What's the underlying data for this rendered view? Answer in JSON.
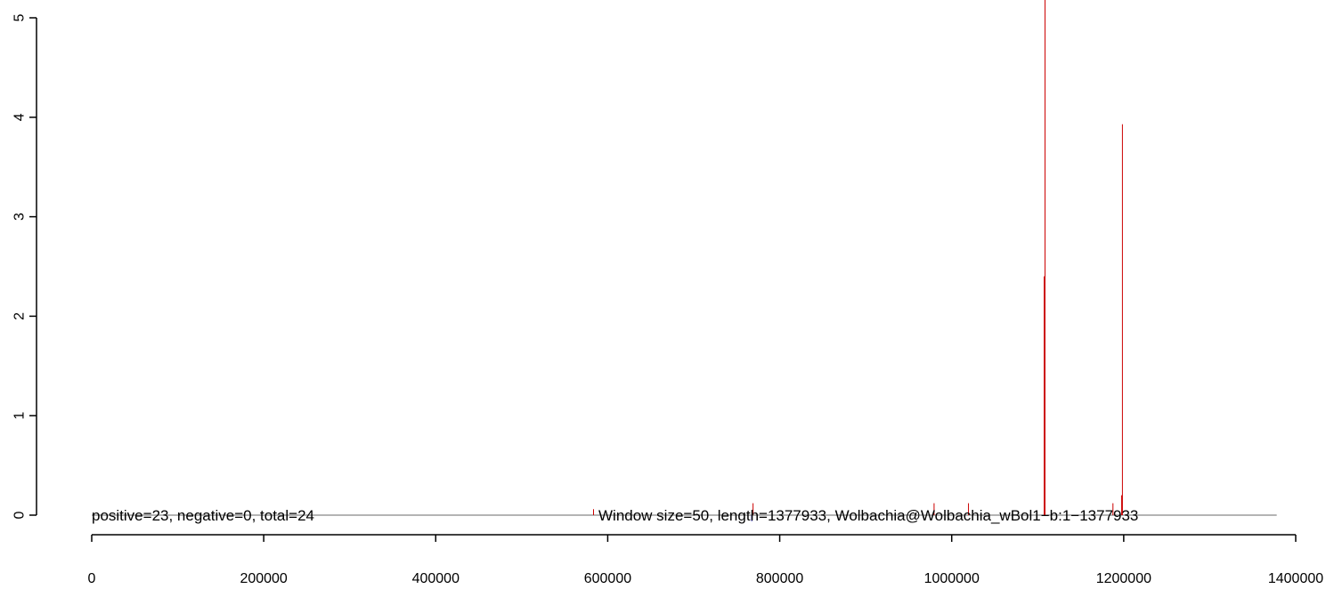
{
  "chart_data": {
    "type": "bar",
    "title": "",
    "xlabel": "",
    "ylabel": "",
    "xlim": [
      0,
      1400000
    ],
    "ylim": [
      0,
      5
    ],
    "x_ticks": [
      {
        "value": 0,
        "label": "0"
      },
      {
        "value": 200000,
        "label": "200000"
      },
      {
        "value": 400000,
        "label": "400000"
      },
      {
        "value": 600000,
        "label": "600000"
      },
      {
        "value": 800000,
        "label": "800000"
      },
      {
        "value": 1000000,
        "label": "1000000"
      },
      {
        "value": 1200000,
        "label": "1200000"
      },
      {
        "value": 1400000,
        "label": "1400000"
      }
    ],
    "y_ticks": [
      {
        "value": 0,
        "label": "0"
      },
      {
        "value": 1,
        "label": "1"
      },
      {
        "value": 2,
        "label": "2"
      },
      {
        "value": 3,
        "label": "3"
      },
      {
        "value": 4,
        "label": "4"
      },
      {
        "value": 5,
        "label": "5"
      }
    ],
    "baseline": {
      "x_start": 0,
      "x_end": 1377933,
      "color": "#888888"
    },
    "series": [
      {
        "color": "#cc0000",
        "points": [
          {
            "x": 583500,
            "y": 0.06
          },
          {
            "x": 769000,
            "y": 0.12
          },
          {
            "x": 979500,
            "y": 0.12
          },
          {
            "x": 1019500,
            "y": 0.12
          },
          {
            "x": 1107500,
            "y": 2.4
          },
          {
            "x": 1108500,
            "y": 5.2
          },
          {
            "x": 1187500,
            "y": 0.12
          },
          {
            "x": 1197500,
            "y": 0.2
          },
          {
            "x": 1198500,
            "y": 3.93
          }
        ]
      },
      {
        "color": "#0000cc",
        "points": [
          {
            "x": 767500,
            "y": -0.06
          }
        ]
      }
    ],
    "annotations": {
      "left": "positive=23, negative=0, total=24",
      "right": "Window size=50, length=1377933, Wolbachia@Wolbachia_wBol1−b:1−1377933"
    }
  }
}
